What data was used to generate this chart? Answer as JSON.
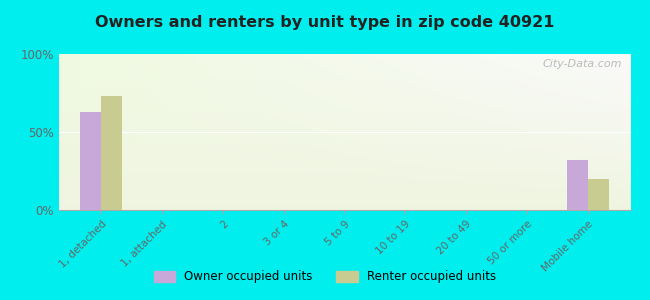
{
  "title": "Owners and renters by unit type in zip code 40921",
  "background_color": "#00EEEE",
  "categories": [
    "1, detached",
    "1, attached",
    "2",
    "3 or 4",
    "5 to 9",
    "10 to 19",
    "20 to 49",
    "50 or more",
    "Mobile home"
  ],
  "owner_values": [
    63,
    0,
    0,
    0,
    0,
    0,
    0,
    0,
    32
  ],
  "renter_values": [
    73,
    0,
    0,
    0,
    0,
    0,
    0,
    0,
    20
  ],
  "owner_color": "#c8a8d8",
  "renter_color": "#c8cc90",
  "ylim": [
    0,
    100
  ],
  "yticks": [
    0,
    50,
    100
  ],
  "ytick_labels": [
    "0%",
    "50%",
    "100%"
  ],
  "bar_width": 0.35,
  "legend_owner": "Owner occupied units",
  "legend_renter": "Renter occupied units",
  "watermark": "City-Data.com"
}
